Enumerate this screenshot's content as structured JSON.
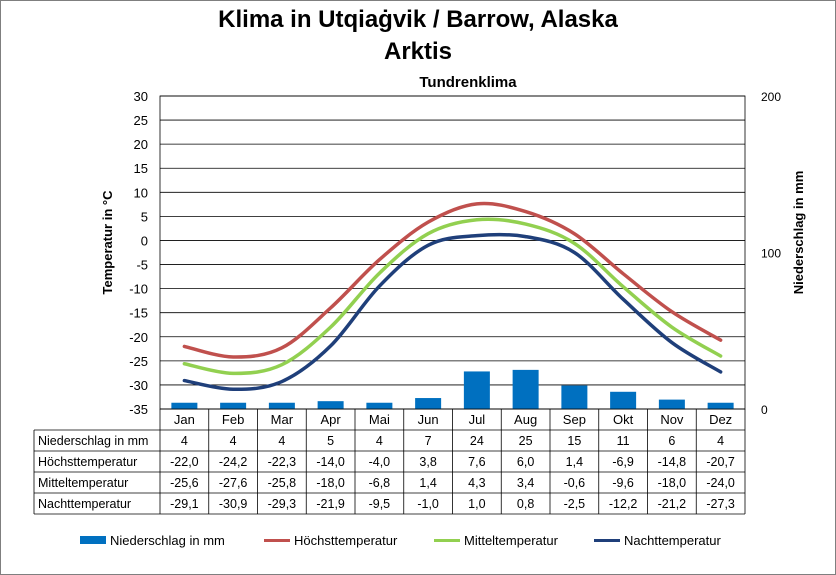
{
  "title_line1": "Klima in Utqiaġvik / Barrow, Alaska",
  "title_line2": "Arktis",
  "subtitle": "Tundrenklima",
  "chart_data": {
    "type": "bar+line",
    "title": "Klima in Utqiaġvik / Barrow, Alaska Arktis",
    "subtitle": "Tundrenklima",
    "categories": [
      "Jan",
      "Feb",
      "Mar",
      "Apr",
      "Mai",
      "Jun",
      "Jul",
      "Aug",
      "Sep",
      "Okt",
      "Nov",
      "Dez"
    ],
    "ylabel_left": "Temperatur in °C",
    "ylabel_right": "Niederschlag in mm",
    "ylim_left": [
      -35,
      30
    ],
    "yticks_left": [
      "30",
      "25",
      "20",
      "15",
      "10",
      "5",
      "0",
      "-5",
      "-10",
      "-15",
      "-20",
      "-25",
      "-30",
      "-35"
    ],
    "ylim_right": [
      0,
      200
    ],
    "yticks_right": [
      "200",
      "100",
      "0"
    ],
    "grid": true,
    "legend_position": "bottom",
    "series": [
      {
        "name": "Niederschlag in mm",
        "type": "bar",
        "axis": "right",
        "color": "#0070c0",
        "values": [
          4,
          4,
          4,
          5,
          4,
          7,
          24,
          25,
          15,
          11,
          6,
          4
        ],
        "labels": [
          "4",
          "4",
          "4",
          "5",
          "4",
          "7",
          "24",
          "25",
          "15",
          "11",
          "6",
          "4"
        ]
      },
      {
        "name": "Höchsttemperatur",
        "type": "line",
        "axis": "left",
        "color": "#c0504d",
        "values": [
          -22.0,
          -24.2,
          -22.3,
          -14.0,
          -4.0,
          3.8,
          7.6,
          6.0,
          1.4,
          -6.9,
          -14.8,
          -20.7
        ],
        "labels": [
          "-22,0",
          "-24,2",
          "-22,3",
          "-14,0",
          "-4,0",
          "3,8",
          "7,6",
          "6,0",
          "1,4",
          "-6,9",
          "-14,8",
          "-20,7"
        ]
      },
      {
        "name": "Mitteltemperatur",
        "type": "line",
        "axis": "left",
        "color": "#92d050",
        "values": [
          -25.6,
          -27.6,
          -25.8,
          -18.0,
          -6.8,
          1.4,
          4.3,
          3.4,
          -0.6,
          -9.6,
          -18.0,
          -24.0
        ],
        "labels": [
          "-25,6",
          "-27,6",
          "-25,8",
          "-18,0",
          "-6,8",
          "1,4",
          "4,3",
          "3,4",
          "-0,6",
          "-9,6",
          "-18,0",
          "-24,0"
        ]
      },
      {
        "name": "Nachttemperatur",
        "type": "line",
        "axis": "left",
        "color": "#1f3f7a",
        "values": [
          -29.1,
          -30.9,
          -29.3,
          -21.9,
          -9.5,
          -1.0,
          1.0,
          0.8,
          -2.5,
          -12.2,
          -21.2,
          -27.3
        ],
        "labels": [
          "-29,1",
          "-30,9",
          "-29,3",
          "-21,9",
          "-9,5",
          "-1,0",
          "1,0",
          "0,8",
          "-2,5",
          "-12,2",
          "-21,2",
          "-27,3"
        ]
      }
    ]
  }
}
